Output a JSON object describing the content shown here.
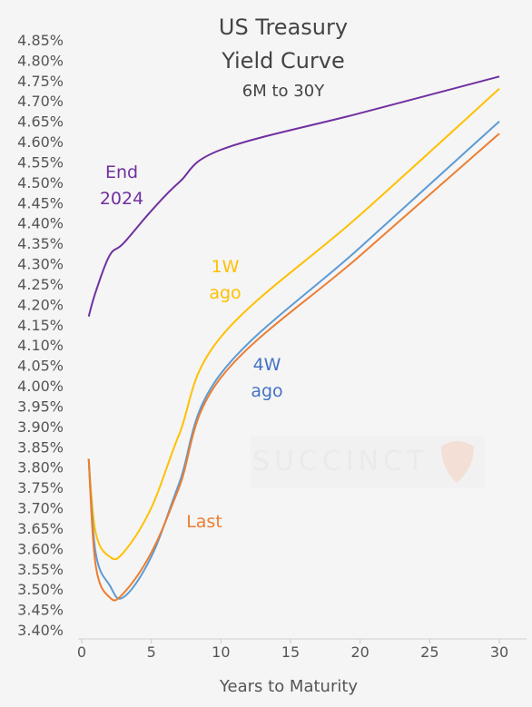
{
  "chart_data": {
    "type": "line",
    "title_lines": [
      "US Treasury",
      "Yield Curve"
    ],
    "subtitle": "6M to 30Y",
    "xlabel": "Years to Maturity",
    "ylabel": "",
    "xlim": [
      0,
      31
    ],
    "ylim": [
      3.4,
      4.85
    ],
    "x_ticks": [
      0,
      5,
      10,
      15,
      20,
      25,
      30
    ],
    "y_ticks": [
      3.4,
      3.45,
      3.5,
      3.55,
      3.6,
      3.65,
      3.7,
      3.75,
      3.8,
      3.85,
      3.9,
      3.95,
      4.0,
      4.05,
      4.1,
      4.15,
      4.2,
      4.25,
      4.3,
      4.35,
      4.4,
      4.45,
      4.5,
      4.55,
      4.6,
      4.65,
      4.7,
      4.75,
      4.8,
      4.85
    ],
    "y_tick_labels": [
      "3.40%",
      "3.45%",
      "3.50%",
      "3.55%",
      "3.60%",
      "3.65%",
      "3.70%",
      "3.75%",
      "3.80%",
      "3.85%",
      "3.90%",
      "3.95%",
      "4.00%",
      "4.05%",
      "4.10%",
      "4.15%",
      "4.20%",
      "4.25%",
      "4.30%",
      "4.35%",
      "4.40%",
      "4.45%",
      "4.50%",
      "4.55%",
      "4.60%",
      "4.65%",
      "4.70%",
      "4.75%",
      "4.80%",
      "4.85%"
    ],
    "grid": false,
    "watermark": "SUCCINCT",
    "series": [
      {
        "label_lines": [
          "End",
          "2024"
        ],
        "color": "#7030a0",
        "x": [
          0.5,
          1,
          2,
          3,
          5,
          7,
          10,
          20,
          30
        ],
        "y": [
          4.17,
          4.23,
          4.32,
          4.35,
          4.43,
          4.5,
          4.58,
          4.67,
          4.76
        ]
      },
      {
        "label_lines": [
          "1W",
          "ago"
        ],
        "color": "#ffc000",
        "x": [
          0.5,
          1,
          2,
          3,
          5,
          7,
          10,
          20,
          30
        ],
        "y": [
          3.82,
          3.64,
          3.58,
          3.59,
          3.7,
          3.88,
          4.12,
          4.42,
          4.73
        ]
      },
      {
        "label_lines": [
          "4W",
          "ago"
        ],
        "color": "#5b9bd5",
        "x": [
          0.5,
          1,
          2,
          3,
          5,
          7,
          10,
          20,
          30
        ],
        "y": [
          3.82,
          3.59,
          3.51,
          3.48,
          3.58,
          3.76,
          4.03,
          4.34,
          4.65
        ]
      },
      {
        "label_lines": [
          "Last"
        ],
        "color": "#ed7d31",
        "x": [
          0.5,
          1,
          2,
          3,
          5,
          7,
          10,
          20,
          30
        ],
        "y": [
          3.82,
          3.56,
          3.48,
          3.49,
          3.59,
          3.75,
          4.02,
          4.32,
          4.62
        ]
      }
    ]
  }
}
